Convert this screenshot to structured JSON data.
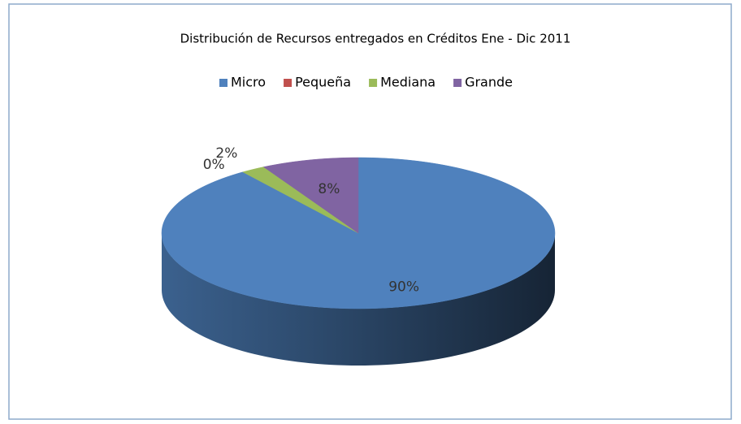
{
  "chart_data": {
    "type": "pie3d",
    "title": "Distribución de Recursos entregados en Créditos Ene - Dic 2011",
    "categories": [
      "Micro",
      "Pequeña",
      "Mediana",
      "Grande"
    ],
    "values": [
      90,
      0,
      2,
      8
    ],
    "value_labels": [
      "90%",
      "0%",
      "2%",
      "8%"
    ],
    "colors": [
      "#4f81bd",
      "#c0504d",
      "#9bbb59",
      "#8064a2"
    ],
    "legend": "top"
  }
}
